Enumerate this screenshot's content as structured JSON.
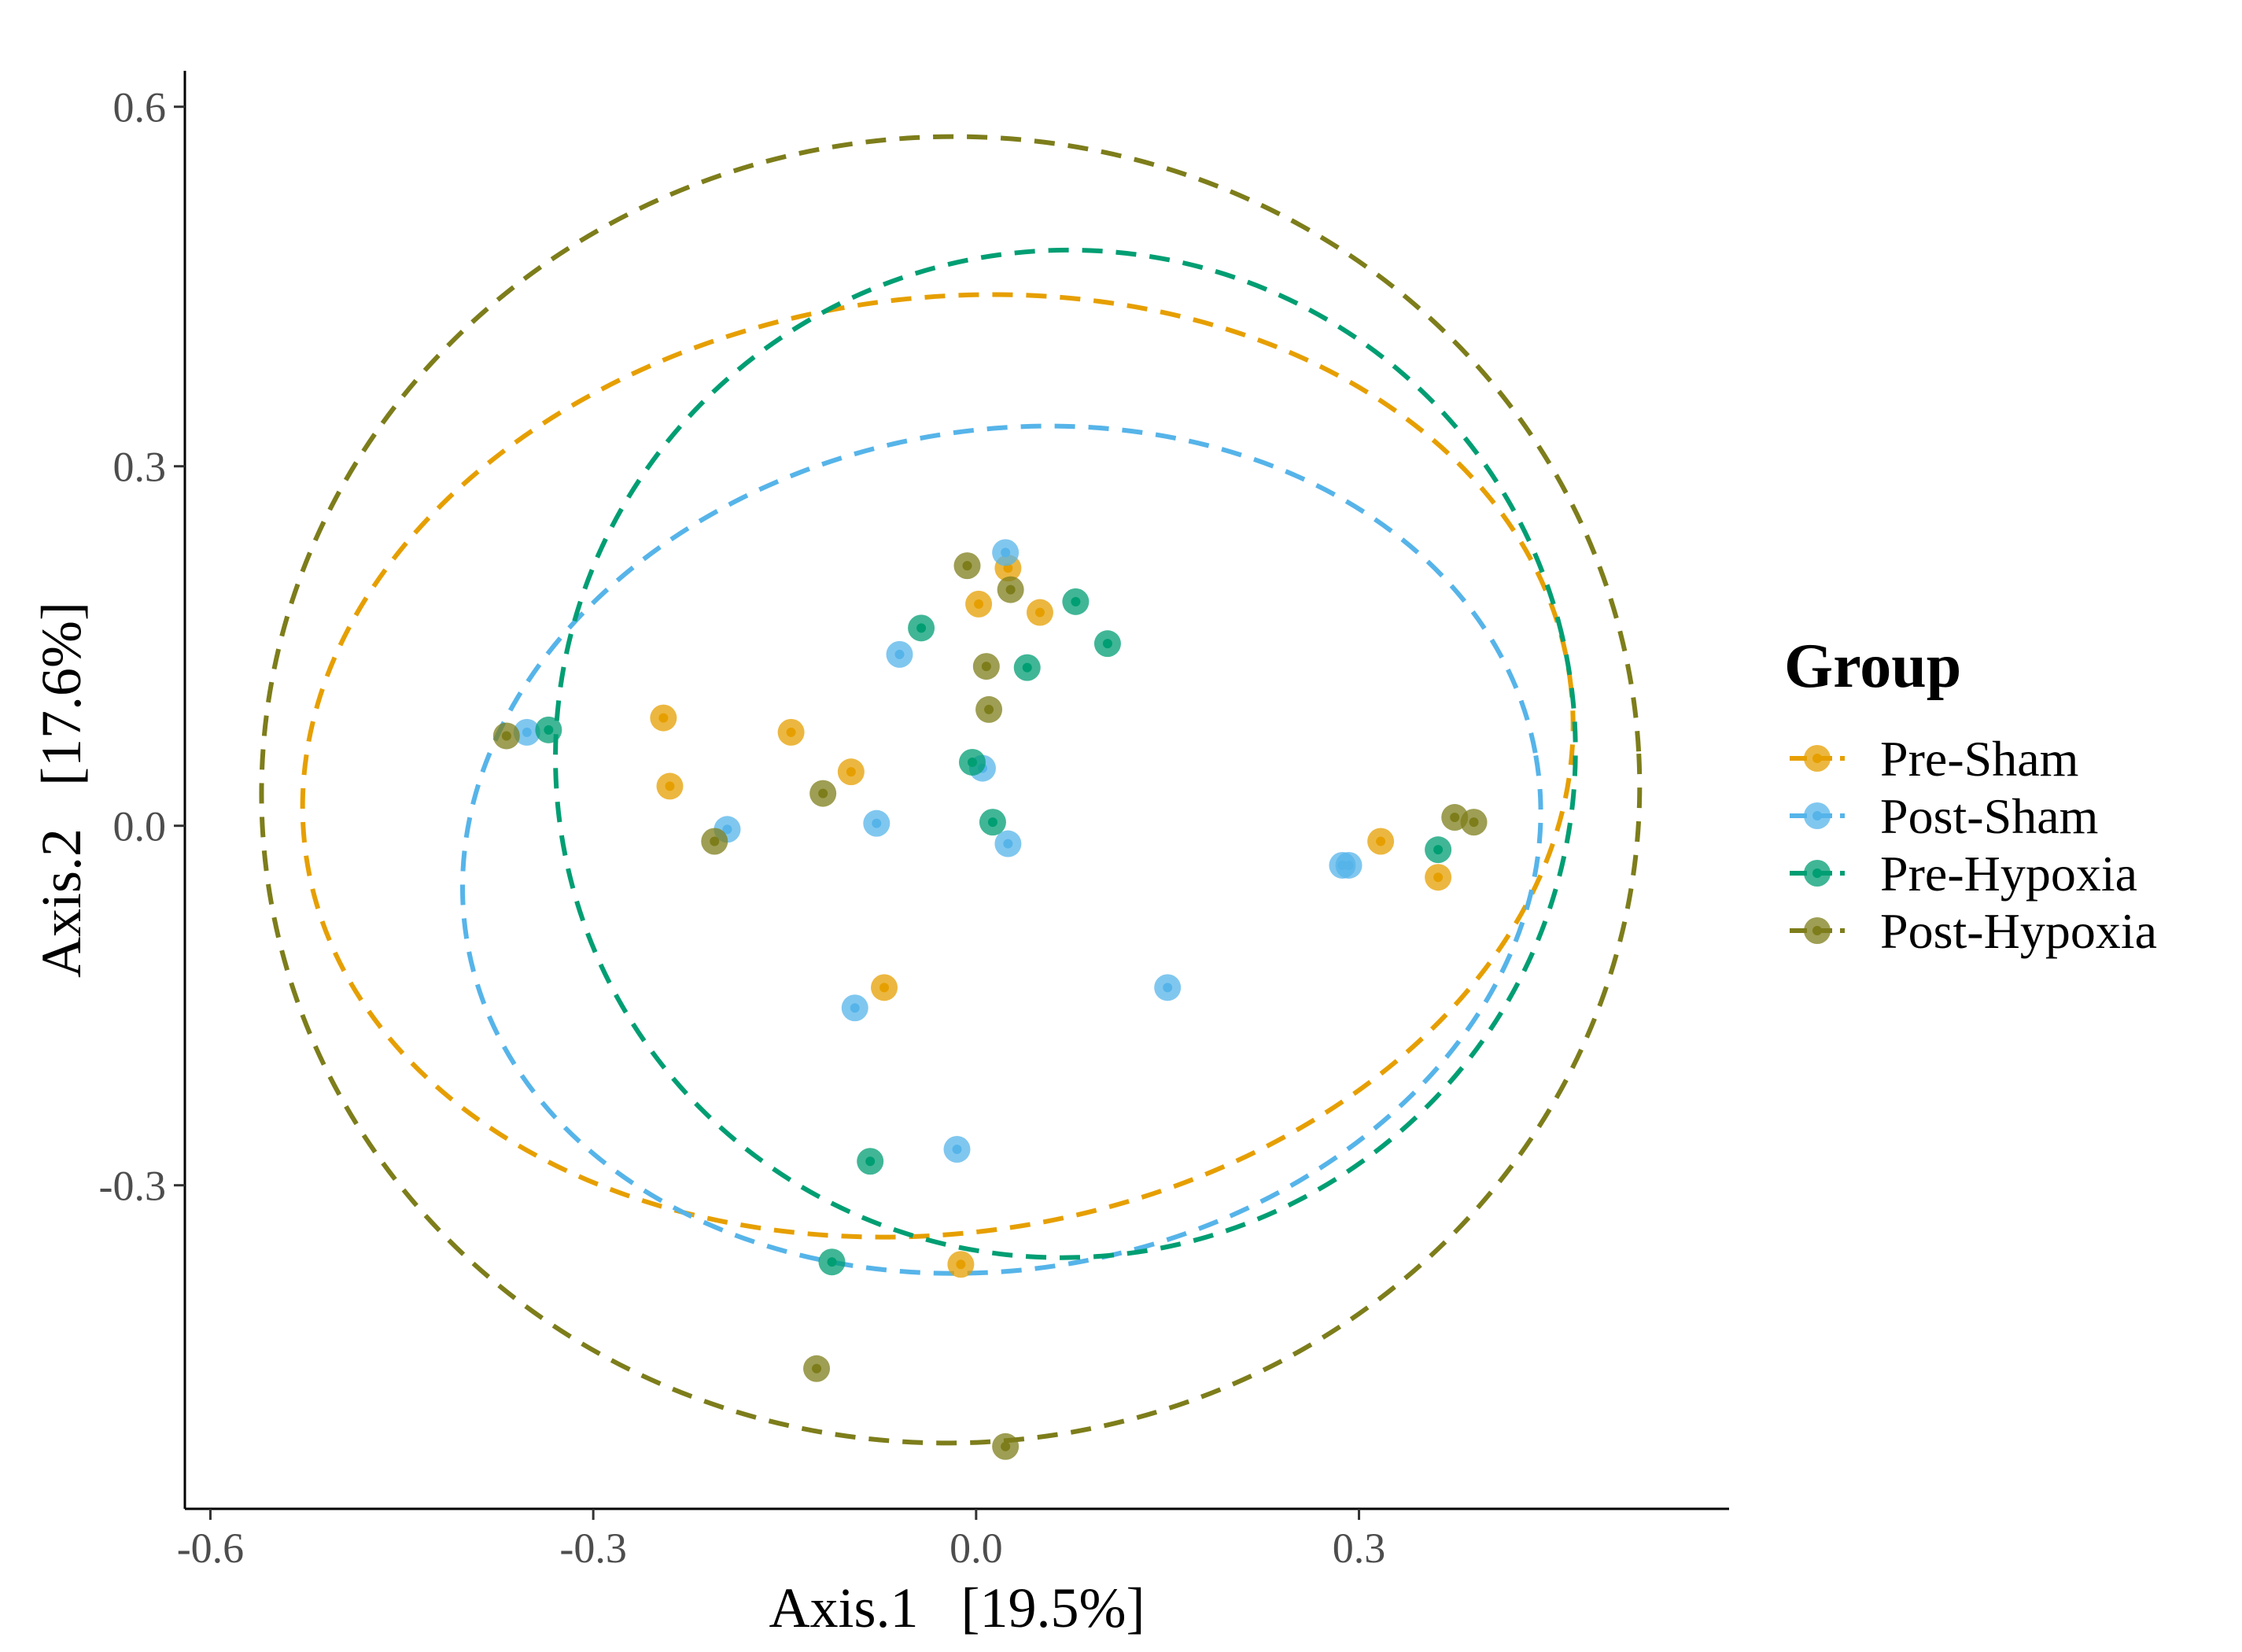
{
  "chart_data": {
    "type": "scatter",
    "xlabel": "Axis.1   [19.5%]",
    "ylabel": "Axis.2   [17.6%]",
    "xlim": [
      -0.62,
      0.59
    ],
    "ylim": [
      -0.57,
      0.63
    ],
    "x_ticks": [
      -0.6,
      -0.3,
      0.0,
      0.3
    ],
    "x_tick_labels": [
      "-0.6",
      "-0.3",
      "0.0",
      "0.3"
    ],
    "y_ticks": [
      -0.3,
      0.0,
      0.3,
      0.6
    ],
    "y_tick_labels": [
      "-0.3",
      "0.0",
      "0.3",
      "0.6"
    ],
    "grid": false,
    "legend": {
      "title": "Group",
      "position": "right"
    },
    "series": [
      {
        "name": "Pre-Sham",
        "color": "#E69F00",
        "points": [
          [
            -0.245,
            0.09
          ],
          [
            -0.24,
            0.033
          ],
          [
            -0.145,
            0.078
          ],
          [
            -0.098,
            0.045
          ],
          [
            -0.072,
            -0.135
          ],
          [
            0.002,
            0.185
          ],
          [
            0.025,
            0.215
          ],
          [
            0.05,
            0.178
          ],
          [
            0.317,
            -0.013
          ],
          [
            0.362,
            -0.043
          ],
          [
            -0.012,
            -0.366
          ]
        ],
        "ellipse": {
          "cx": -0.03,
          "cy": 0.05,
          "rx": 0.5,
          "ry": 0.39,
          "rot": -8
        }
      },
      {
        "name": "Post-Sham",
        "color": "#56B4E9",
        "points": [
          [
            -0.352,
            0.078
          ],
          [
            -0.195,
            -0.003
          ],
          [
            -0.078,
            0.002
          ],
          [
            -0.06,
            0.143
          ],
          [
            -0.095,
            -0.152
          ],
          [
            0.023,
            0.228
          ],
          [
            0.005,
            0.048
          ],
          [
            0.025,
            -0.015
          ],
          [
            0.15,
            -0.135
          ],
          [
            -0.015,
            -0.27
          ],
          [
            0.287,
            -0.033
          ],
          [
            0.292,
            -0.033
          ]
        ],
        "ellipse": {
          "cx": 0.02,
          "cy": -0.02,
          "rx": 0.425,
          "ry": 0.35,
          "rot": -10
        }
      },
      {
        "name": "Pre-Hypoxia",
        "color": "#009E73",
        "points": [
          [
            -0.335,
            0.08
          ],
          [
            -0.043,
            0.165
          ],
          [
            0.078,
            0.187
          ],
          [
            0.103,
            0.152
          ],
          [
            0.04,
            0.132
          ],
          [
            -0.003,
            0.053
          ],
          [
            0.013,
            0.003
          ],
          [
            0.362,
            -0.02
          ],
          [
            -0.083,
            -0.28
          ],
          [
            -0.113,
            -0.364
          ]
        ],
        "ellipse": {
          "cx": 0.07,
          "cy": 0.06,
          "rx": 0.4,
          "ry": 0.42,
          "rot": -15
        }
      },
      {
        "name": "Post-Hypoxia",
        "color": "#7D7D1B",
        "points": [
          [
            -0.368,
            0.075
          ],
          [
            -0.205,
            -0.013
          ],
          [
            -0.12,
            0.027
          ],
          [
            -0.007,
            0.217
          ],
          [
            0.027,
            0.197
          ],
          [
            0.008,
            0.133
          ],
          [
            0.01,
            0.097
          ],
          [
            0.375,
            0.007
          ],
          [
            0.39,
            0.003
          ],
          [
            -0.125,
            -0.453
          ],
          [
            0.023,
            -0.518
          ]
        ],
        "ellipse": {
          "cx": -0.02,
          "cy": 0.03,
          "rx": 0.54,
          "ry": 0.545,
          "rot": -3
        }
      }
    ]
  }
}
